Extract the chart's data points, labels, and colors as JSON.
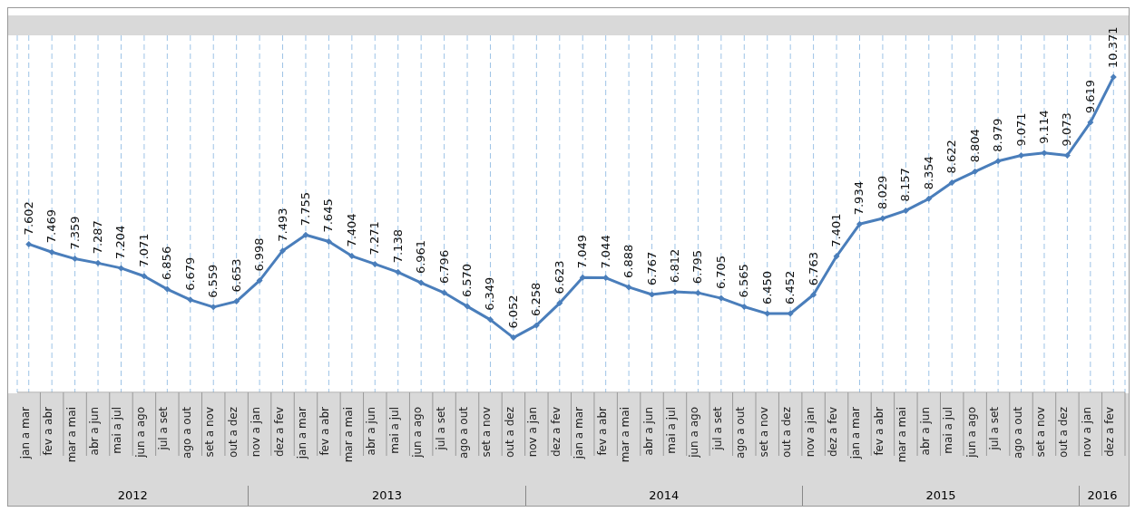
{
  "chart_data": {
    "type": "line",
    "categories": [
      "jan a mar",
      "fev a abr",
      "mar a mai",
      "abr a jun",
      "mai a jul",
      "jun a ago",
      "jul a set",
      "ago a out",
      "set a nov",
      "out a dez",
      "nov a jan",
      "dez a fev",
      "jan a mar",
      "fev a abr",
      "mar a mai",
      "abr a jun",
      "mai a jul",
      "jun a ago",
      "jul a set",
      "ago a out",
      "set a nov",
      "out a dez",
      "nov a jan",
      "dez a fev",
      "jan a mar",
      "fev a abr",
      "mar a mai",
      "abr a jun",
      "mai a jul",
      "jun a ago",
      "jul a set",
      "ago a out",
      "set a nov",
      "out a dez",
      "nov a jan",
      "dez a fev",
      "jan a mar",
      "fev a abr",
      "mar a mai",
      "abr a jun",
      "mai a jul",
      "jun a ago",
      "jul a set",
      "ago a out",
      "set a nov",
      "out a dez",
      "nov a jan",
      "dez a fev"
    ],
    "series": [
      {
        "color": "#4a7ebb",
        "values": [
          7.602,
          7.469,
          7.359,
          7.287,
          7.204,
          7.071,
          6.856,
          6.679,
          6.559,
          6.653,
          6.998,
          7.493,
          7.755,
          7.645,
          7.404,
          7.271,
          7.138,
          6.961,
          6.796,
          6.57,
          6.349,
          6.052,
          6.258,
          6.623,
          7.049,
          7.044,
          6.888,
          6.767,
          6.812,
          6.795,
          6.705,
          6.565,
          6.45,
          6.452,
          6.763,
          7.401,
          7.934,
          8.029,
          8.157,
          8.354,
          8.622,
          8.804,
          8.979,
          9.071,
          9.114,
          9.073,
          9.619,
          10.371
        ],
        "value_labels": [
          "7.602",
          "7.469",
          "7.359",
          "7.287",
          "7.204",
          "7.071",
          "6.856",
          "6.679",
          "6.559",
          "6.653",
          "6.998",
          "7.493",
          "7.755",
          "7.645",
          "7.404",
          "7.271",
          "7.138",
          "6.961",
          "6.796",
          "6.570",
          "6.349",
          "6.052",
          "6.258",
          "6.623",
          "7.049",
          "7.044",
          "6.888",
          "6.767",
          "6.812",
          "6.795",
          "6.705",
          "6.565",
          "6.450",
          "6.452",
          "6.763",
          "7.401",
          "7.934",
          "8.029",
          "8.157",
          "8.354",
          "8.622",
          "8.804",
          "8.979",
          "9.071",
          "9.114",
          "9.073",
          "9.619",
          "10.371"
        ]
      }
    ],
    "annotations": [
      "2012",
      "2013",
      "2014",
      "2015",
      "2016"
    ],
    "grid": "x",
    "marker": "diamond",
    "line_style": "solid",
    "tick_labels": "x"
  }
}
